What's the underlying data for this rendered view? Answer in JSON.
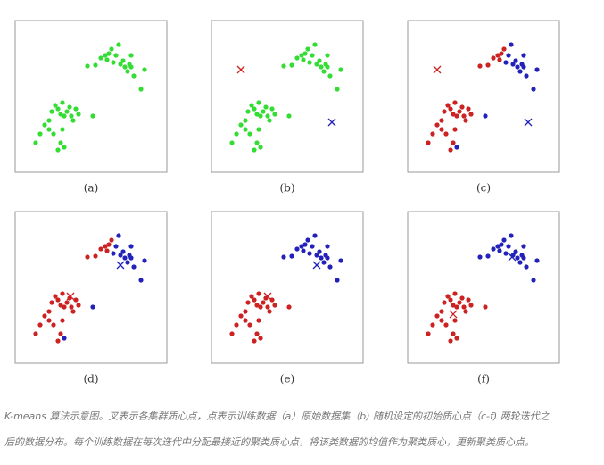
{
  "chart_data": [
    {
      "type": "scatter",
      "title": "(a)",
      "xlim": [
        0,
        170
      ],
      "ylim": [
        170,
        0
      ],
      "series": [
        {
          "color": "#33dd33",
          "marker": "o",
          "x": [
            81,
            90,
            96,
            101,
            103,
            105,
            108,
            110,
            113,
            116,
            118,
            121,
            123,
            126,
            128,
            130,
            133,
            141,
            145,
            130,
            23,
            28,
            33,
            38,
            41,
            45,
            48,
            51,
            53,
            55,
            58,
            61,
            63,
            65,
            68,
            71,
            53,
            51,
            55,
            48,
            43,
            38,
            87
          ],
          "y": [
            51,
            50,
            42,
            39,
            44,
            37,
            32,
            47,
            39,
            27,
            49,
            45,
            52,
            57,
            49,
            52,
            62,
            77,
            55,
            39,
            137,
            127,
            117,
            112,
            102,
            95,
            99,
            105,
            92,
            107,
            102,
            97,
            107,
            112,
            99,
            105,
            122,
            137,
            142,
            145,
            127,
            122,
            107
          ]
        }
      ]
    },
    {
      "type": "scatter",
      "title": "(b)",
      "xlim": [
        0,
        170
      ],
      "ylim": [
        170,
        0
      ],
      "series": [
        {
          "color": "#33dd33",
          "marker": "o",
          "x": [
            81,
            90,
            96,
            101,
            103,
            105,
            108,
            110,
            113,
            116,
            118,
            121,
            123,
            126,
            128,
            130,
            133,
            141,
            145,
            130,
            23,
            28,
            33,
            38,
            41,
            45,
            48,
            51,
            53,
            55,
            58,
            61,
            63,
            65,
            68,
            71,
            53,
            51,
            55,
            48,
            43,
            38,
            87
          ],
          "y": [
            51,
            50,
            42,
            39,
            44,
            37,
            32,
            47,
            39,
            27,
            49,
            45,
            52,
            57,
            49,
            52,
            62,
            77,
            55,
            39,
            137,
            127,
            117,
            112,
            102,
            95,
            99,
            105,
            92,
            107,
            102,
            97,
            107,
            112,
            99,
            105,
            122,
            137,
            142,
            145,
            127,
            122,
            107
          ]
        },
        {
          "color": "#cc2222",
          "marker": "x",
          "x": [
            33
          ],
          "y": [
            55
          ]
        },
        {
          "color": "#2222bb",
          "marker": "x",
          "x": [
            135
          ],
          "y": [
            114
          ]
        }
      ]
    },
    {
      "type": "scatter",
      "title": "(c)",
      "xlim": [
        0,
        170
      ],
      "ylim": [
        170,
        0
      ],
      "series": [
        {
          "color": "#cc2222",
          "marker": "o",
          "x": [
            23,
            28,
            33,
            38,
            41,
            45,
            48,
            51,
            53,
            55,
            58,
            61,
            63,
            65,
            68,
            71,
            53,
            51,
            48,
            43,
            38,
            81,
            90,
            96,
            101,
            103,
            105,
            108
          ],
          "y": [
            137,
            127,
            117,
            112,
            102,
            95,
            99,
            105,
            92,
            107,
            102,
            97,
            107,
            112,
            99,
            105,
            122,
            137,
            145,
            127,
            122,
            51,
            50,
            42,
            39,
            44,
            37,
            32
          ]
        },
        {
          "color": "#2222bb",
          "marker": "o",
          "x": [
            110,
            113,
            116,
            118,
            121,
            123,
            126,
            128,
            130,
            133,
            141,
            145,
            130,
            87,
            55
          ],
          "y": [
            47,
            39,
            27,
            49,
            45,
            52,
            57,
            49,
            52,
            62,
            77,
            55,
            39,
            107,
            142
          ]
        },
        {
          "color": "#cc2222",
          "marker": "x",
          "x": [
            33
          ],
          "y": [
            55
          ]
        },
        {
          "color": "#2222bb",
          "marker": "x",
          "x": [
            135
          ],
          "y": [
            114
          ]
        }
      ]
    },
    {
      "type": "scatter",
      "title": "(d)",
      "xlim": [
        0,
        170
      ],
      "ylim": [
        170,
        0
      ],
      "series": [
        {
          "color": "#cc2222",
          "marker": "o",
          "x": [
            23,
            28,
            33,
            38,
            41,
            45,
            48,
            51,
            53,
            55,
            58,
            61,
            63,
            65,
            68,
            71,
            53,
            51,
            48,
            43,
            38,
            81,
            90,
            96,
            101,
            103,
            105,
            108
          ],
          "y": [
            137,
            127,
            117,
            112,
            102,
            95,
            99,
            105,
            92,
            107,
            102,
            97,
            107,
            112,
            99,
            105,
            122,
            137,
            145,
            127,
            122,
            51,
            50,
            42,
            39,
            44,
            37,
            32
          ]
        },
        {
          "color": "#2222bb",
          "marker": "o",
          "x": [
            110,
            113,
            116,
            118,
            121,
            123,
            126,
            128,
            130,
            133,
            141,
            145,
            130,
            87,
            55
          ],
          "y": [
            47,
            39,
            27,
            49,
            45,
            52,
            57,
            49,
            52,
            62,
            77,
            55,
            39,
            107,
            142
          ]
        },
        {
          "color": "#cc2222",
          "marker": "x",
          "x": [
            62
          ],
          "y": [
            95
          ]
        },
        {
          "color": "#2222bb",
          "marker": "x",
          "x": [
            118
          ],
          "y": [
            60
          ]
        }
      ]
    },
    {
      "type": "scatter",
      "title": "(e)",
      "xlim": [
        0,
        170
      ],
      "ylim": [
        170,
        0
      ],
      "series": [
        {
          "color": "#cc2222",
          "marker": "o",
          "x": [
            23,
            28,
            33,
            38,
            41,
            45,
            48,
            51,
            53,
            55,
            58,
            61,
            63,
            65,
            68,
            71,
            53,
            51,
            55,
            48,
            43,
            38,
            87
          ],
          "y": [
            137,
            127,
            117,
            112,
            102,
            95,
            99,
            105,
            92,
            107,
            102,
            97,
            107,
            112,
            99,
            105,
            122,
            137,
            142,
            145,
            127,
            122,
            107
          ]
        },
        {
          "color": "#2222bb",
          "marker": "o",
          "x": [
            81,
            90,
            96,
            101,
            103,
            105,
            108,
            110,
            113,
            116,
            118,
            121,
            123,
            126,
            128,
            130,
            133,
            141,
            145,
            130
          ],
          "y": [
            51,
            50,
            42,
            39,
            44,
            37,
            32,
            47,
            39,
            27,
            49,
            45,
            52,
            57,
            49,
            52,
            62,
            77,
            55,
            39
          ]
        },
        {
          "color": "#cc2222",
          "marker": "x",
          "x": [
            63
          ],
          "y": [
            95
          ]
        },
        {
          "color": "#2222bb",
          "marker": "x",
          "x": [
            118
          ],
          "y": [
            60
          ]
        }
      ]
    },
    {
      "type": "scatter",
      "title": "(f)",
      "xlim": [
        0,
        170
      ],
      "ylim": [
        170,
        0
      ],
      "series": [
        {
          "color": "#cc2222",
          "marker": "o",
          "x": [
            23,
            28,
            33,
            38,
            41,
            45,
            48,
            51,
            53,
            55,
            58,
            61,
            63,
            65,
            68,
            71,
            53,
            51,
            55,
            48,
            43,
            38,
            87
          ],
          "y": [
            137,
            127,
            117,
            112,
            102,
            95,
            99,
            105,
            92,
            107,
            102,
            97,
            107,
            112,
            99,
            105,
            122,
            137,
            142,
            145,
            127,
            122,
            107
          ]
        },
        {
          "color": "#2222bb",
          "marker": "o",
          "x": [
            81,
            90,
            96,
            101,
            103,
            105,
            108,
            110,
            113,
            116,
            118,
            121,
            123,
            126,
            128,
            130,
            133,
            141,
            145,
            130
          ],
          "y": [
            51,
            50,
            42,
            39,
            44,
            37,
            32,
            47,
            39,
            27,
            49,
            45,
            52,
            57,
            49,
            52,
            62,
            77,
            55,
            39
          ]
        },
        {
          "color": "#cc2222",
          "marker": "x",
          "x": [
            51
          ],
          "y": [
            115
          ]
        },
        {
          "color": "#2222bb",
          "marker": "x",
          "x": [
            117
          ],
          "y": [
            51
          ]
        }
      ]
    }
  ],
  "caption": [
    "K-means 算法示意图。叉表示各集群质心点，点表示训练数据（a）原始数据集（b) 随机设定的初始质心点（c-f) 两轮迭代之",
    "后的数据分布。每个训练数据在每次迭代中分配最接近的聚类质心点，将该类数据的均值作为聚类质心，更新聚类质心点。"
  ]
}
